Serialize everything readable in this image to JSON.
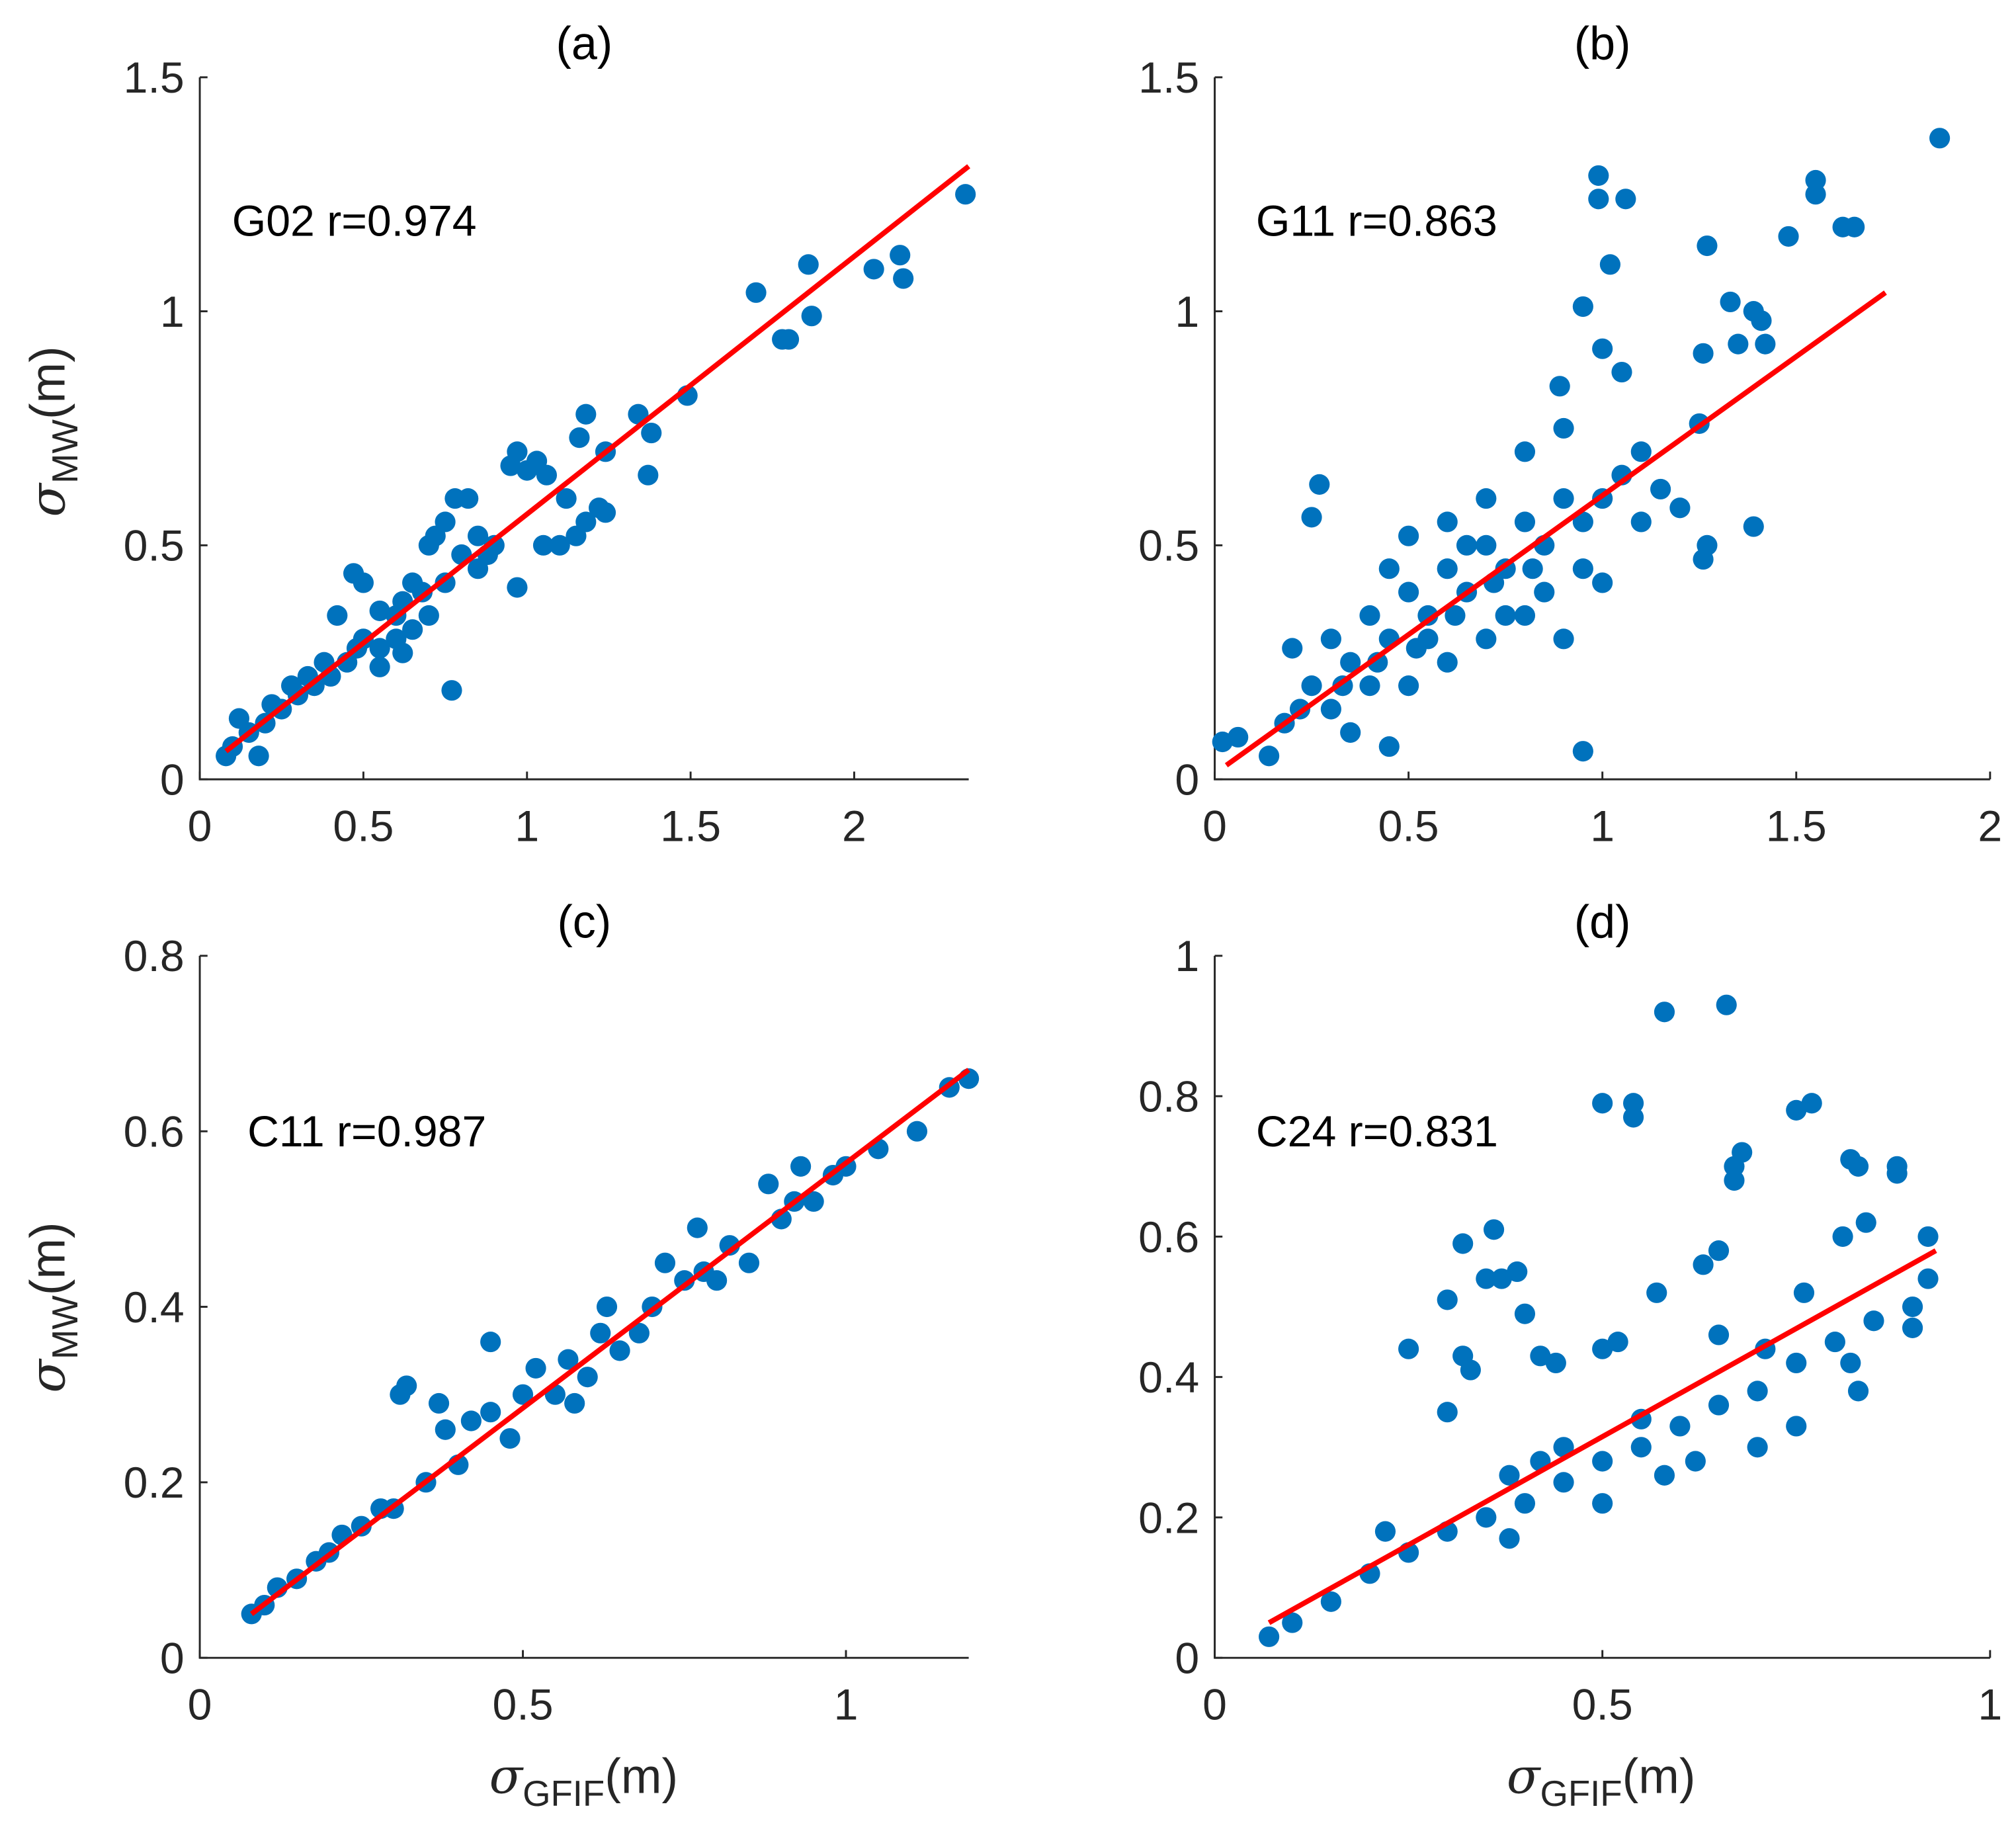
{
  "colors": {
    "marker": "#0072BD",
    "fit": "#FF0000",
    "axis": "#262626"
  },
  "labels": {
    "ylabel_sym": "σ",
    "ylabel_sub": "MW",
    "ylabel_unit": "(m)",
    "xlabel_sym": "σ",
    "xlabel_sub": "GFIF",
    "xlabel_unit": "(m)"
  },
  "chart_data": [
    {
      "type": "scatter",
      "title": "(a)",
      "annotation": "G02 r=0.974",
      "xlim": [
        0,
        2.35
      ],
      "ylim": [
        0,
        1.5
      ],
      "xticks": [
        0,
        0.5,
        1,
        1.5,
        2
      ],
      "xtick_labels": [
        "0",
        "0.5",
        "1",
        "1.5",
        "2"
      ],
      "yticks": [
        0,
        0.5,
        1,
        1.5
      ],
      "ytick_labels": [
        "0",
        "0.5",
        "1",
        "1.5"
      ],
      "fit": [
        [
          0.08,
          0.06
        ],
        [
          2.35,
          1.31
        ]
      ],
      "points": [
        [
          2.34,
          1.25
        ],
        [
          2.14,
          1.12
        ],
        [
          2.15,
          1.07
        ],
        [
          2.06,
          1.09
        ],
        [
          1.86,
          1.1
        ],
        [
          1.87,
          0.99
        ],
        [
          1.7,
          1.04
        ],
        [
          1.78,
          0.94
        ],
        [
          1.8,
          0.94
        ],
        [
          1.49,
          0.82
        ],
        [
          1.34,
          0.78
        ],
        [
          1.38,
          0.74
        ],
        [
          1.37,
          0.65
        ],
        [
          1.18,
          0.78
        ],
        [
          1.16,
          0.73
        ],
        [
          1.24,
          0.7
        ],
        [
          1.22,
          0.58
        ],
        [
          1.24,
          0.57
        ],
        [
          1.1,
          0.5
        ],
        [
          1.15,
          0.52
        ],
        [
          1.05,
          0.5
        ],
        [
          1.18,
          0.55
        ],
        [
          1.12,
          0.6
        ],
        [
          1.06,
          0.65
        ],
        [
          0.95,
          0.67
        ],
        [
          1.0,
          0.66
        ],
        [
          0.97,
          0.7
        ],
        [
          1.03,
          0.68
        ],
        [
          0.97,
          0.41
        ],
        [
          0.77,
          0.19
        ],
        [
          0.78,
          0.6
        ],
        [
          0.82,
          0.6
        ],
        [
          0.75,
          0.55
        ],
        [
          0.72,
          0.52
        ],
        [
          0.7,
          0.5
        ],
        [
          0.8,
          0.48
        ],
        [
          0.85,
          0.45
        ],
        [
          0.88,
          0.48
        ],
        [
          0.65,
          0.42
        ],
        [
          0.62,
          0.38
        ],
        [
          0.6,
          0.35
        ],
        [
          0.55,
          0.36
        ],
        [
          0.47,
          0.44
        ],
        [
          0.5,
          0.42
        ],
        [
          0.42,
          0.35
        ],
        [
          0.6,
          0.3
        ],
        [
          0.62,
          0.27
        ],
        [
          0.5,
          0.3
        ],
        [
          0.55,
          0.28
        ],
        [
          0.45,
          0.25
        ],
        [
          0.4,
          0.22
        ],
        [
          0.35,
          0.2
        ],
        [
          0.3,
          0.18
        ],
        [
          0.25,
          0.15
        ],
        [
          0.2,
          0.12
        ],
        [
          0.15,
          0.1
        ],
        [
          0.1,
          0.07
        ],
        [
          0.08,
          0.05
        ],
        [
          0.12,
          0.13
        ],
        [
          0.18,
          0.05
        ],
        [
          0.7,
          0.35
        ],
        [
          0.68,
          0.4
        ],
        [
          0.75,
          0.42
        ],
        [
          0.65,
          0.32
        ],
        [
          0.55,
          0.24
        ],
        [
          0.48,
          0.28
        ],
        [
          0.38,
          0.25
        ],
        [
          0.33,
          0.22
        ],
        [
          0.28,
          0.2
        ],
        [
          0.22,
          0.16
        ],
        [
          0.85,
          0.52
        ],
        [
          0.9,
          0.5
        ]
      ]
    },
    {
      "type": "scatter",
      "title": "(b)",
      "annotation": "G11 r=0.863",
      "xlim": [
        0,
        2
      ],
      "ylim": [
        0,
        1.5
      ],
      "xticks": [
        0,
        0.5,
        1,
        1.5,
        2
      ],
      "xtick_labels": [
        "0",
        "0.5",
        "1",
        "1.5",
        "2"
      ],
      "yticks": [
        0,
        0.5,
        1,
        1.5
      ],
      "ytick_labels": [
        "0",
        "0.5",
        "1",
        "1.5"
      ],
      "fit": [
        [
          0.03,
          0.03
        ],
        [
          1.73,
          1.04
        ]
      ],
      "points": [
        [
          1.87,
          1.37
        ],
        [
          1.55,
          1.28
        ],
        [
          1.55,
          1.25
        ],
        [
          1.65,
          1.18
        ],
        [
          1.62,
          1.18
        ],
        [
          0.99,
          1.29
        ],
        [
          0.99,
          1.24
        ],
        [
          1.06,
          1.24
        ],
        [
          1.02,
          1.1
        ],
        [
          1.27,
          1.14
        ],
        [
          1.48,
          1.16
        ],
        [
          1.39,
          1.0
        ],
        [
          1.41,
          0.98
        ],
        [
          1.42,
          0.93
        ],
        [
          1.35,
          0.93
        ],
        [
          1.33,
          1.02
        ],
        [
          0.95,
          1.01
        ],
        [
          1.0,
          0.92
        ],
        [
          0.89,
          0.84
        ],
        [
          1.05,
          0.87
        ],
        [
          1.26,
          0.91
        ],
        [
          1.25,
          0.76
        ],
        [
          1.39,
          0.54
        ],
        [
          1.27,
          0.5
        ],
        [
          1.26,
          0.47
        ],
        [
          0.27,
          0.63
        ],
        [
          0.25,
          0.56
        ],
        [
          0.95,
          0.06
        ],
        [
          0.02,
          0.08
        ],
        [
          0.06,
          0.09
        ],
        [
          0.14,
          0.05
        ],
        [
          0.45,
          0.07
        ],
        [
          0.2,
          0.28
        ],
        [
          0.3,
          0.15
        ],
        [
          0.35,
          0.1
        ],
        [
          0.4,
          0.2
        ],
        [
          0.45,
          0.3
        ],
        [
          0.5,
          0.4
        ],
        [
          0.55,
          0.35
        ],
        [
          0.6,
          0.45
        ],
        [
          0.65,
          0.4
        ],
        [
          0.7,
          0.5
        ],
        [
          0.75,
          0.45
        ],
        [
          0.8,
          0.55
        ],
        [
          0.85,
          0.5
        ],
        [
          0.9,
          0.6
        ],
        [
          0.95,
          0.55
        ],
        [
          1.0,
          0.6
        ],
        [
          1.05,
          0.65
        ],
        [
          1.1,
          0.55
        ],
        [
          1.15,
          0.62
        ],
        [
          1.2,
          0.58
        ],
        [
          0.5,
          0.2
        ],
        [
          0.6,
          0.25
        ],
        [
          0.7,
          0.3
        ],
        [
          0.8,
          0.35
        ],
        [
          0.9,
          0.3
        ],
        [
          1.0,
          0.42
        ],
        [
          0.4,
          0.35
        ],
        [
          0.5,
          0.52
        ],
        [
          0.6,
          0.55
        ],
        [
          0.7,
          0.6
        ],
        [
          0.8,
          0.7
        ],
        [
          0.9,
          0.75
        ],
        [
          0.35,
          0.25
        ],
        [
          0.25,
          0.2
        ],
        [
          0.3,
          0.3
        ],
        [
          0.45,
          0.45
        ],
        [
          0.55,
          0.3
        ],
        [
          0.65,
          0.5
        ],
        [
          0.75,
          0.35
        ],
        [
          0.85,
          0.4
        ],
        [
          0.95,
          0.45
        ],
        [
          1.1,
          0.7
        ],
        [
          0.22,
          0.15
        ],
        [
          0.18,
          0.12
        ],
        [
          0.82,
          0.45
        ],
        [
          0.72,
          0.42
        ],
        [
          0.62,
          0.35
        ],
        [
          0.52,
          0.28
        ],
        [
          0.42,
          0.25
        ],
        [
          0.33,
          0.2
        ]
      ]
    },
    {
      "type": "scatter",
      "title": "(c)",
      "annotation": "C11 r=0.987",
      "xlim": [
        0,
        1.19
      ],
      "ylim": [
        0,
        0.8
      ],
      "xticks": [
        0,
        0.5,
        1
      ],
      "xtick_labels": [
        "0",
        "0.5",
        "1"
      ],
      "yticks": [
        0,
        0.2,
        0.4,
        0.6,
        0.8
      ],
      "ytick_labels": [
        "0",
        "0.2",
        "0.4",
        "0.6",
        "0.8"
      ],
      "fit": [
        [
          0.08,
          0.05
        ],
        [
          1.19,
          0.67
        ]
      ],
      "points": [
        [
          0.32,
          0.31
        ],
        [
          0.31,
          0.3
        ],
        [
          0.37,
          0.29
        ],
        [
          0.45,
          0.36
        ],
        [
          0.88,
          0.54
        ],
        [
          0.93,
          0.56
        ],
        [
          0.77,
          0.49
        ],
        [
          1.11,
          0.6
        ],
        [
          1.19,
          0.66
        ],
        [
          1.16,
          0.65
        ],
        [
          0.8,
          0.43
        ],
        [
          0.85,
          0.45
        ],
        [
          0.9,
          0.5
        ],
        [
          0.95,
          0.52
        ],
        [
          0.63,
          0.4
        ],
        [
          0.65,
          0.35
        ],
        [
          0.7,
          0.4
        ],
        [
          0.75,
          0.43
        ],
        [
          0.6,
          0.32
        ],
        [
          0.55,
          0.3
        ],
        [
          0.5,
          0.3
        ],
        [
          0.48,
          0.25
        ],
        [
          0.4,
          0.22
        ],
        [
          0.35,
          0.2
        ],
        [
          0.3,
          0.17
        ],
        [
          0.25,
          0.15
        ],
        [
          0.2,
          0.12
        ],
        [
          0.15,
          0.09
        ],
        [
          0.1,
          0.06
        ],
        [
          0.08,
          0.05
        ],
        [
          0.42,
          0.27
        ],
        [
          0.52,
          0.33
        ],
        [
          0.57,
          0.34
        ],
        [
          0.68,
          0.37
        ],
        [
          0.72,
          0.45
        ],
        [
          0.82,
          0.47
        ],
        [
          1.0,
          0.56
        ],
        [
          1.05,
          0.58
        ],
        [
          0.28,
          0.17
        ],
        [
          0.22,
          0.14
        ],
        [
          0.18,
          0.11
        ],
        [
          0.12,
          0.08
        ],
        [
          0.38,
          0.26
        ],
        [
          0.45,
          0.28
        ],
        [
          0.58,
          0.29
        ],
        [
          0.62,
          0.37
        ],
        [
          0.78,
          0.44
        ],
        [
          0.92,
          0.52
        ],
        [
          0.98,
          0.55
        ]
      ]
    },
    {
      "type": "scatter",
      "title": "(d)",
      "annotation": "C24 r=0.831",
      "xlim": [
        0,
        1
      ],
      "ylim": [
        0,
        1
      ],
      "xticks": [
        0,
        0.5,
        1
      ],
      "xtick_labels": [
        "0",
        "0.5",
        "1"
      ],
      "yticks": [
        0,
        0.2,
        0.4,
        0.6,
        0.8,
        1
      ],
      "ytick_labels": [
        "0",
        "0.2",
        "0.4",
        "0.6",
        "0.8",
        "1"
      ],
      "fit": [
        [
          0.07,
          0.05
        ],
        [
          0.93,
          0.58
        ]
      ],
      "points": [
        [
          0.58,
          0.92
        ],
        [
          0.66,
          0.93
        ],
        [
          0.5,
          0.79
        ],
        [
          0.54,
          0.77
        ],
        [
          0.54,
          0.79
        ],
        [
          0.75,
          0.78
        ],
        [
          0.77,
          0.79
        ],
        [
          0.67,
          0.7
        ],
        [
          0.68,
          0.72
        ],
        [
          0.67,
          0.68
        ],
        [
          0.82,
          0.71
        ],
        [
          0.83,
          0.7
        ],
        [
          0.88,
          0.7
        ],
        [
          0.88,
          0.69
        ],
        [
          0.32,
          0.59
        ],
        [
          0.36,
          0.61
        ],
        [
          0.35,
          0.54
        ],
        [
          0.37,
          0.54
        ],
        [
          0.39,
          0.55
        ],
        [
          0.4,
          0.49
        ],
        [
          0.3,
          0.51
        ],
        [
          0.25,
          0.44
        ],
        [
          0.32,
          0.43
        ],
        [
          0.33,
          0.41
        ],
        [
          0.42,
          0.43
        ],
        [
          0.44,
          0.42
        ],
        [
          0.5,
          0.44
        ],
        [
          0.52,
          0.45
        ],
        [
          0.57,
          0.52
        ],
        [
          0.63,
          0.56
        ],
        [
          0.65,
          0.58
        ],
        [
          0.65,
          0.46
        ],
        [
          0.71,
          0.44
        ],
        [
          0.76,
          0.52
        ],
        [
          0.81,
          0.6
        ],
        [
          0.84,
          0.62
        ],
        [
          0.92,
          0.6
        ],
        [
          0.92,
          0.54
        ],
        [
          0.9,
          0.47
        ],
        [
          0.83,
          0.38
        ],
        [
          0.82,
          0.42
        ],
        [
          0.3,
          0.35
        ],
        [
          0.07,
          0.03
        ],
        [
          0.1,
          0.05
        ],
        [
          0.15,
          0.08
        ],
        [
          0.2,
          0.12
        ],
        [
          0.22,
          0.18
        ],
        [
          0.25,
          0.15
        ],
        [
          0.3,
          0.18
        ],
        [
          0.35,
          0.2
        ],
        [
          0.4,
          0.22
        ],
        [
          0.45,
          0.25
        ],
        [
          0.5,
          0.28
        ],
        [
          0.55,
          0.3
        ],
        [
          0.6,
          0.33
        ],
        [
          0.65,
          0.36
        ],
        [
          0.7,
          0.38
        ],
        [
          0.75,
          0.42
        ],
        [
          0.8,
          0.45
        ],
        [
          0.85,
          0.48
        ],
        [
          0.9,
          0.5
        ],
        [
          0.38,
          0.17
        ],
        [
          0.5,
          0.22
        ],
        [
          0.58,
          0.26
        ],
        [
          0.62,
          0.28
        ],
        [
          0.7,
          0.3
        ],
        [
          0.75,
          0.33
        ],
        [
          0.55,
          0.34
        ],
        [
          0.45,
          0.3
        ],
        [
          0.38,
          0.26
        ],
        [
          0.42,
          0.28
        ]
      ]
    }
  ]
}
